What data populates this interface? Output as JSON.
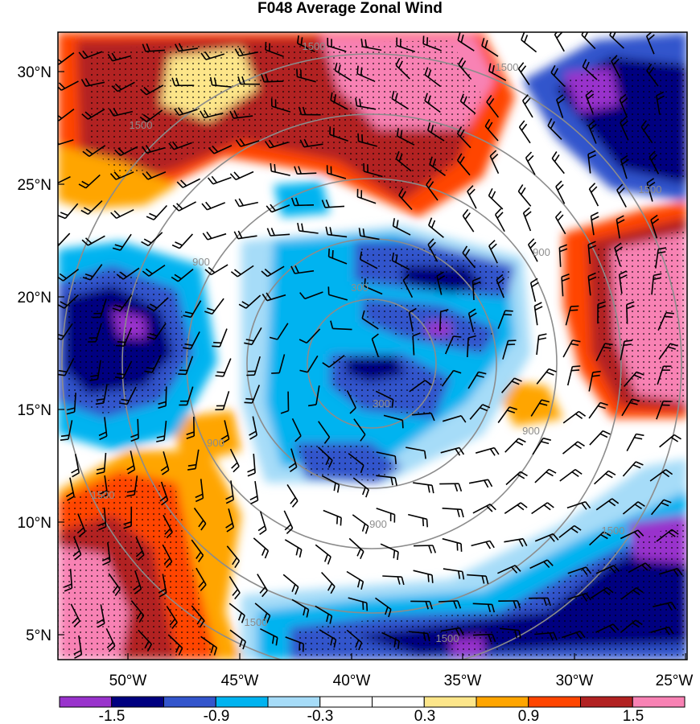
{
  "title": "F048 Average Zonal Wind",
  "y_axis_labels": [
    "30°N",
    "25°N",
    "20°N",
    "15°N",
    "10°N",
    "5°N"
  ],
  "x_axis_labels": [
    "50°W",
    "45°W",
    "40°W",
    "35°W",
    "30°W",
    "25°W"
  ],
  "colorbar": {
    "colors": [
      "#9933cc",
      "#000080",
      "#3355cc",
      "#00b3f0",
      "#a6dcf8",
      "#ffffff",
      "#ffffff",
      "#fde68a",
      "#ffa500",
      "#ff4500",
      "#b22222",
      "#f882b4"
    ],
    "labels": [
      "-1.5",
      "-0.9",
      "-0.3",
      "0.3",
      "0.9",
      "1.5"
    ]
  },
  "range_rings": {
    "labels": [
      "300",
      "900",
      "1500"
    ]
  },
  "colors": {
    "ring": "#8c8c8c",
    "stipple": "#000000"
  }
}
